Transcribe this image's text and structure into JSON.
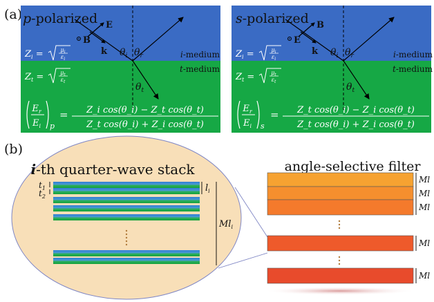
{
  "panel_a": {
    "label": "(a)",
    "p_panel": {
      "title_italic": "p",
      "title_rest": "-polarized",
      "e_label": "E",
      "b_label": "B",
      "k_label": "k",
      "zi_formula": "Z_i = sqrt(μ_i / ε_i)",
      "zt_formula": "Z_t = sqrt(μ_t / ε_t)",
      "i_medium_italic": "i",
      "i_medium_rest": "-medium",
      "t_medium_italic": "t",
      "t_medium_rest": "-medium",
      "theta_i": "θi",
      "theta_r": "θr",
      "theta_t": "θt",
      "lhs_subscript": "p",
      "numerator": "Z_i cos(θ_i) − Z_t cos(θ_t)",
      "denominator": "Z_t cos(θ_i) + Z_i cos(θ_t)"
    },
    "s_panel": {
      "title_italic": "s",
      "title_rest": "-polarized",
      "e_label": "E",
      "b_label": "B",
      "k_label": "k",
      "zi_formula": "Z_i = sqrt(μ_i / ε_i)",
      "zt_formula": "Z_t = sqrt(μ_t / ε_t)",
      "i_medium_italic": "i",
      "i_medium_rest": "-medium",
      "t_medium_italic": "t",
      "t_medium_rest": "-medium",
      "theta_i": "θi",
      "theta_r": "θr",
      "theta_t": "θt",
      "lhs_subscript": "s",
      "numerator": "Z_t cos(θ_i) − Z_i cos(θ_t)",
      "denominator": "Z_t cos(θ_i) + Z_i cos(θ_t)"
    }
  },
  "panel_b": {
    "label": "(b)",
    "stack_title_italic": "i",
    "stack_title_rest": "-th quarter-wave stack",
    "t1": "t1",
    "t2": "t2",
    "li": "li",
    "mli": "Mli",
    "filter_title": "angle-selective filter",
    "filter_labels": [
      "Ml",
      "Ml",
      "Ml",
      "Ml",
      "Ml"
    ]
  },
  "colors": {
    "blue": "#3a6bc4",
    "green": "#16a845",
    "ellipse": "#f8dfb8",
    "orange_light": "#f6a231",
    "orange_mid": "#f47a2c",
    "orange_dark": "#ee5a2b",
    "red": "#e84b2c"
  }
}
